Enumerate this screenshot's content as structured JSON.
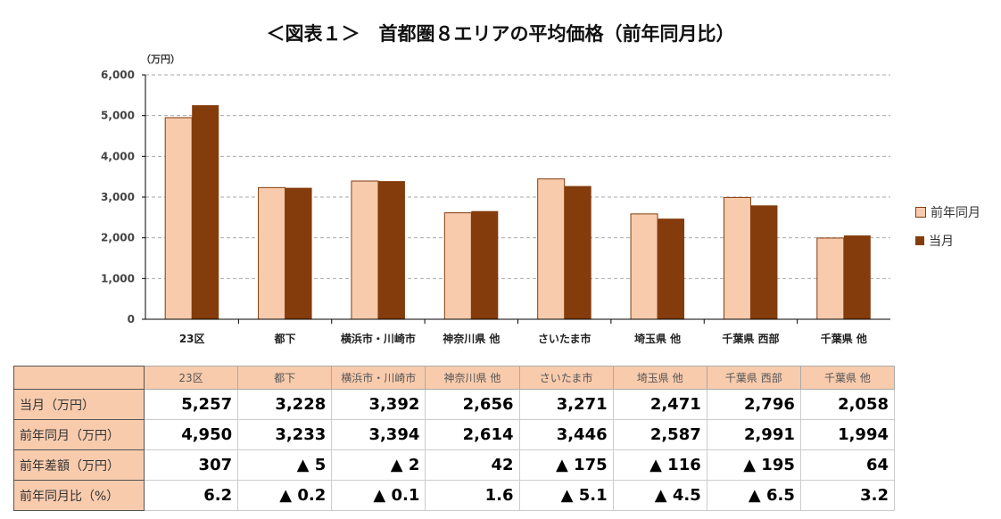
{
  "title": "＜図表１＞　首都圏８エリアの平均価格（前年同月比）",
  "colors": {
    "prev": "#f8cbad",
    "curr": "#843c0c",
    "table_header": "#f8cbad"
  },
  "chart_data": {
    "type": "bar",
    "ylabel": "（万円）",
    "ylim": [
      0,
      6000
    ],
    "yticks": [
      "0",
      "1,000",
      "2,000",
      "3,000",
      "4,000",
      "5,000",
      "6,000"
    ],
    "grid": true,
    "legend_position": "right",
    "categories": [
      "23区",
      "都下",
      "横浜市・川崎市",
      "神奈川県 他",
      "さいたま市",
      "埼玉県 他",
      "千葉県 西部",
      "千葉県 他"
    ],
    "series": [
      {
        "name": "前年同月",
        "values": [
          4950,
          3233,
          3394,
          2614,
          3446,
          2587,
          2991,
          1994
        ]
      },
      {
        "name": "当月",
        "values": [
          5257,
          3228,
          3392,
          2656,
          3271,
          2471,
          2796,
          2058
        ]
      }
    ]
  },
  "table": {
    "header": [
      "23区",
      "都下",
      "横浜市・川崎市",
      "神奈川県 他",
      "さいたま市",
      "埼玉県 他",
      "千葉県 西部",
      "千葉県 他"
    ],
    "rows": [
      {
        "label": "当月（万円）",
        "cells": [
          "5,257",
          "3,228",
          "3,392",
          "2,656",
          "3,271",
          "2,471",
          "2,796",
          "2,058"
        ]
      },
      {
        "label": "前年同月（万円）",
        "cells": [
          "4,950",
          "3,233",
          "3,394",
          "2,614",
          "3,446",
          "2,587",
          "2,991",
          "1,994"
        ]
      },
      {
        "label": "前年差額（万円）",
        "cells": [
          "307",
          "▲ 5",
          "▲ 2",
          "42",
          "▲ 175",
          "▲ 116",
          "▲ 195",
          "64"
        ]
      },
      {
        "label": "前年同月比（%）",
        "cells": [
          "6.2",
          "▲ 0.2",
          "▲ 0.1",
          "1.6",
          "▲ 5.1",
          "▲ 4.5",
          "▲ 6.5",
          "3.2"
        ]
      }
    ]
  }
}
